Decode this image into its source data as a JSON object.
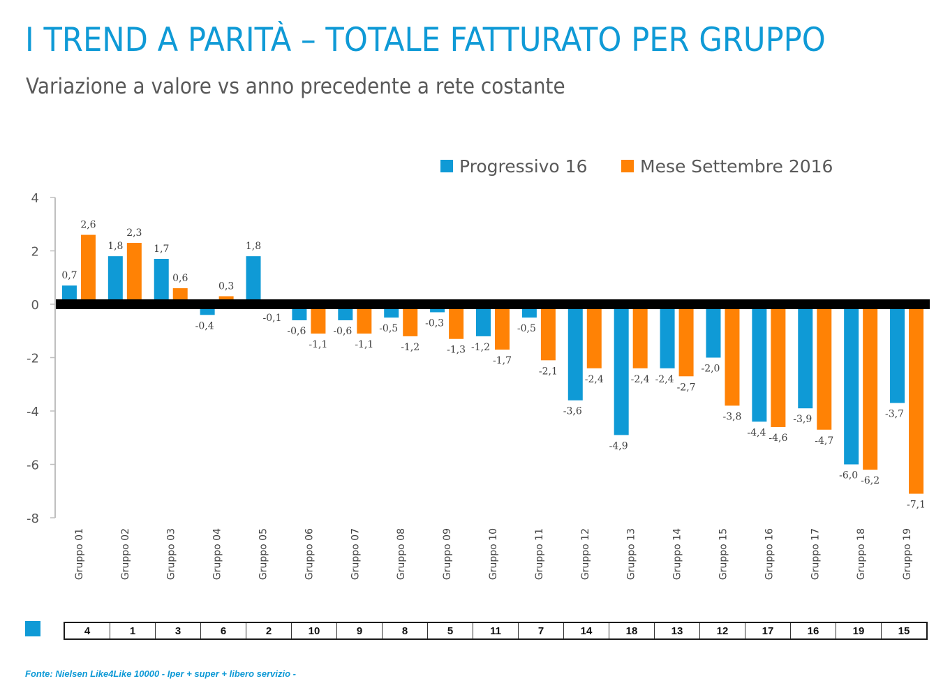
{
  "header": {
    "title": "I TREND A PARITÀ – TOTALE FATTURATO PER GRUPPO",
    "subtitle": "Variazione a valore vs anno precedente a rete costante"
  },
  "colors": {
    "progressivo": "#0f9ad6",
    "mese": "#ff8205",
    "zero_line": "#000000",
    "title": "#0f9ad6"
  },
  "chart_data": {
    "type": "bar",
    "title": "I TREND A PARITÀ – TOTALE FATTURATO PER GRUPPO",
    "subtitle": "Variazione a valore vs anno precedente a rete costante",
    "xlabel": "",
    "ylabel": "",
    "ylim": [
      -8,
      4
    ],
    "yticks": [
      4,
      2,
      0,
      -2,
      -4,
      -6,
      -8
    ],
    "grid": false,
    "legend_position": "top-right",
    "categories": [
      "Gruppo 01",
      "Gruppo 02",
      "Gruppo 03",
      "Gruppo 04",
      "Gruppo 05",
      "Gruppo 06",
      "Gruppo 07",
      "Gruppo 08",
      "Gruppo 09",
      "Gruppo 10",
      "Gruppo 11",
      "Gruppo 12",
      "Gruppo 13",
      "Gruppo 14",
      "Gruppo 15",
      "Gruppo 16",
      "Gruppo 17",
      "Gruppo 18",
      "Gruppo 19"
    ],
    "series": [
      {
        "name": "Progressivo 16",
        "color": "#0f9ad6",
        "values": [
          0.7,
          1.8,
          1.7,
          -0.4,
          1.8,
          -0.6,
          -0.6,
          -0.5,
          -0.3,
          -1.2,
          -0.5,
          -3.6,
          -4.9,
          -2.4,
          -2.0,
          -4.4,
          -3.9,
          -6.0,
          -3.7
        ],
        "labels": [
          "0,7",
          "1,8",
          "1,7",
          "-0,4",
          "1,8",
          "-0,6",
          "-0,6",
          "-0,5",
          "-0,3",
          "-1,2",
          "-0,5",
          "-3,6",
          "-4,9",
          "-2,4",
          "-2,0",
          "-4,4",
          "-3,9",
          "-6,0",
          "-3,7"
        ]
      },
      {
        "name": "Mese Settembre 2016",
        "color": "#ff8205",
        "values": [
          2.6,
          2.3,
          0.6,
          0.3,
          -0.1,
          -1.1,
          -1.1,
          -1.2,
          -1.3,
          -1.7,
          -2.1,
          -2.4,
          -2.4,
          -2.7,
          -3.8,
          -4.6,
          -4.7,
          -6.2,
          -7.1
        ],
        "labels": [
          "2,6",
          "2,3",
          "0,6",
          "0,3",
          "-0,1",
          "-1,1",
          "-1,1",
          "-1,2",
          "-1,3",
          "-1,7",
          "-2,1",
          "-2,4",
          "-2,4",
          "-2,7",
          "-3,8",
          "-4,6",
          "-4,7",
          "-6,2",
          "-7,1"
        ]
      }
    ]
  },
  "ranking": {
    "values": [
      "4",
      "1",
      "3",
      "6",
      "2",
      "10",
      "9",
      "8",
      "5",
      "11",
      "7",
      "14",
      "18",
      "13",
      "12",
      "17",
      "16",
      "19",
      "15"
    ]
  },
  "footer": {
    "source": "Fonte: Nielsen Like4Like 10000 - Iper + super + libero servizio -"
  }
}
